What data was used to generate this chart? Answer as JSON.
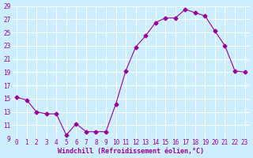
{
  "x": [
    0,
    1,
    2,
    3,
    4,
    5,
    6,
    7,
    8,
    9,
    10,
    11,
    12,
    13,
    14,
    15,
    16,
    17,
    18,
    19,
    20,
    21,
    22,
    23
  ],
  "y": [
    15.2,
    14.8,
    13.0,
    12.7,
    12.7,
    9.5,
    11.2,
    10.0,
    10.0,
    10.0,
    14.2,
    19.2,
    22.8,
    24.5,
    26.5,
    27.2,
    27.2,
    28.5,
    28.0,
    27.5,
    25.2,
    23.0,
    19.2,
    19.0
  ],
  "ylim": [
    9,
    29
  ],
  "yticks": [
    9,
    11,
    13,
    15,
    17,
    19,
    21,
    23,
    25,
    27,
    29
  ],
  "xticks": [
    0,
    1,
    2,
    3,
    4,
    5,
    6,
    7,
    8,
    9,
    10,
    11,
    12,
    13,
    14,
    15,
    16,
    17,
    18,
    19,
    20,
    21,
    22,
    23
  ],
  "xlabel": "Windchill (Refroidissement éolien,°C)",
  "line_color": "#990099",
  "marker": "D",
  "marker_size": 2.5,
  "bg_color": "#cceeff",
  "grid_color": "#ffffff",
  "title_color": "#990099",
  "tick_color": "#990099",
  "xlabel_color": "#990099"
}
